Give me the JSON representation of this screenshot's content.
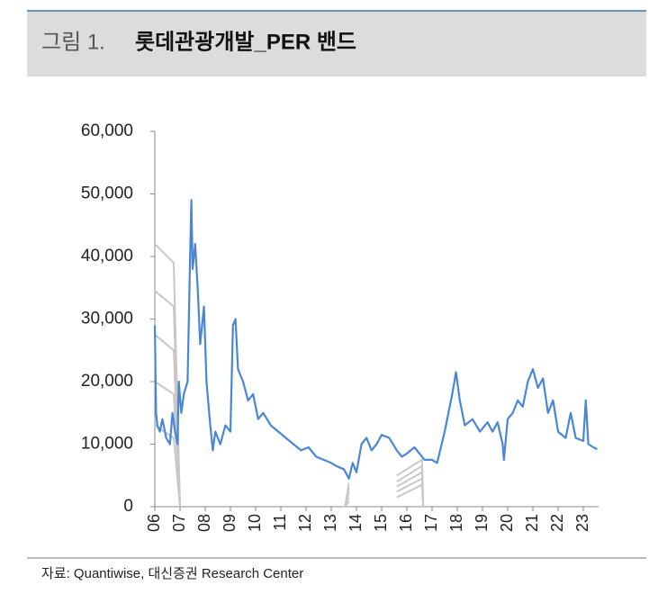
{
  "header": {
    "figure_label": "그림 1.",
    "title": "롯데관광개발_PER 밴드"
  },
  "chart_data": {
    "type": "line",
    "xlim": [
      6,
      23.6
    ],
    "ylim": [
      0,
      60000
    ],
    "xticks": [
      {
        "value": 6,
        "label": "06"
      },
      {
        "value": 7,
        "label": "07"
      },
      {
        "value": 8,
        "label": "08"
      },
      {
        "value": 9,
        "label": "09"
      },
      10,
      11,
      12,
      13,
      14,
      15,
      16,
      17,
      18,
      19,
      20,
      21,
      22,
      23
    ],
    "yticks": [
      0,
      {
        "value": 10000,
        "label": "10,000"
      },
      {
        "value": 20000,
        "label": "20,000"
      },
      {
        "value": 30000,
        "label": "30,000"
      },
      {
        "value": 40000,
        "label": "40,000"
      },
      {
        "value": 50000,
        "label": "50,000"
      },
      {
        "value": 60000,
        "label": "60,000"
      }
    ],
    "series": [
      {
        "color": "#c8c8c8",
        "x": [
          6,
          6.75,
          7.0,
          7.05,
          13.55,
          13.7,
          13.75,
          15.6,
          16.6,
          16.65
        ],
        "values": [
          42000,
          39000,
          0,
          null,
          0,
          3800,
          null,
          5000,
          7500,
          0
        ]
      },
      {
        "color": "#c8c8c8",
        "x": [
          6,
          6.75,
          7.0,
          7.05,
          13.55,
          13.7,
          13.75,
          15.6,
          16.6,
          16.65
        ],
        "values": [
          34500,
          32000,
          0,
          null,
          0,
          3000,
          null,
          4000,
          6500,
          0
        ]
      },
      {
        "color": "#c8c8c8",
        "x": [
          6,
          6.75,
          7.0,
          7.05,
          13.55,
          13.7,
          13.75,
          15.6,
          16.6,
          16.65
        ],
        "values": [
          27500,
          25000,
          0,
          null,
          0,
          2300,
          null,
          3200,
          5500,
          0
        ]
      },
      {
        "color": "#c8c8c8",
        "x": [
          6,
          6.75,
          7.0,
          7.05,
          13.55,
          13.7,
          13.75,
          15.6,
          16.6,
          16.65
        ],
        "values": [
          20000,
          18000,
          0,
          null,
          0,
          1500,
          null,
          2400,
          4500,
          0
        ]
      },
      {
        "color": "#c8c8c8",
        "x": [
          6,
          6.75,
          7.0,
          7.05,
          13.55,
          13.7,
          13.75,
          15.6,
          16.6,
          16.65
        ],
        "values": [
          13000,
          11000,
          0,
          null,
          0,
          800,
          null,
          1500,
          3500,
          0
        ]
      },
      {
        "color": "#4a86d4",
        "x": [
          6.0,
          6.05,
          6.1,
          6.2,
          6.3,
          6.45,
          6.6,
          6.7,
          6.8,
          6.9,
          6.95,
          7.05,
          7.15,
          7.3,
          7.4,
          7.45,
          7.5,
          7.6,
          7.7,
          7.8,
          7.95,
          8.05,
          8.2,
          8.3,
          8.4,
          8.6,
          8.8,
          9.0,
          9.1,
          9.2,
          9.3,
          9.5,
          9.7,
          9.9,
          10.1,
          10.3,
          10.6,
          10.9,
          11.2,
          11.5,
          11.8,
          12.1,
          12.4,
          12.7,
          13.0,
          13.2,
          13.5,
          13.7,
          13.85,
          14.0,
          14.2,
          14.4,
          14.6,
          14.8,
          15.0,
          15.3,
          15.6,
          15.8,
          16.0,
          16.3,
          16.5,
          16.7,
          17.0,
          17.2,
          17.5,
          17.8,
          17.95,
          18.1,
          18.3,
          18.6,
          18.9,
          19.2,
          19.4,
          19.6,
          19.8,
          19.85,
          20.0,
          20.2,
          20.4,
          20.6,
          20.8,
          21.0,
          21.2,
          21.4,
          21.6,
          21.8,
          22.0,
          22.3,
          22.5,
          22.7,
          23.0,
          23.1,
          23.2,
          23.4,
          23.55
        ],
        "values": [
          29000,
          15000,
          13000,
          12000,
          14000,
          11000,
          10000,
          15000,
          12000,
          10000,
          20000,
          15000,
          18000,
          20000,
          40000,
          49000,
          38000,
          42000,
          35000,
          26000,
          32000,
          20000,
          13000,
          9000,
          12000,
          10000,
          13000,
          12000,
          29000,
          30000,
          22000,
          20000,
          17000,
          18000,
          14000,
          15000,
          13000,
          12000,
          11000,
          10000,
          9000,
          9500,
          8000,
          7500,
          7000,
          6500,
          6000,
          4500,
          7000,
          5500,
          10000,
          11000,
          9000,
          10000,
          11500,
          11000,
          9000,
          8000,
          8500,
          9500,
          8500,
          7500,
          7500,
          7000,
          12000,
          18000,
          21500,
          17000,
          13000,
          14000,
          12000,
          13500,
          12000,
          13500,
          10000,
          7500,
          14000,
          15000,
          17000,
          16000,
          20000,
          22000,
          19000,
          20500,
          15000,
          17000,
          12000,
          11000,
          15000,
          11000,
          10500,
          17000,
          10000,
          9500,
          9200
        ]
      }
    ]
  },
  "source": "자료: Quantiwise, 대신증권 Research Center"
}
